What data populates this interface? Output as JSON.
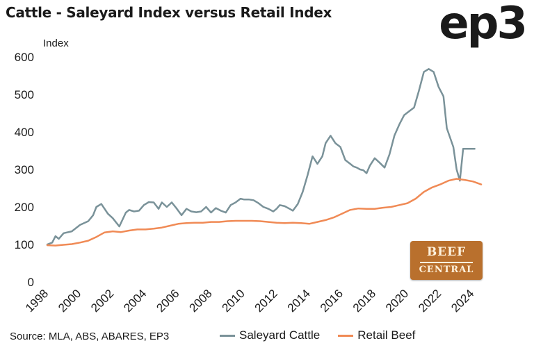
{
  "title": "Cattle - Saleyard Index versus Retail Index",
  "logo_text": "ep3",
  "source": "Source: MLA, ABS, ABARES, EP3",
  "badge": {
    "line1": "BEEF",
    "line2": "CENTRAL"
  },
  "colors": {
    "saleyard": "#7a9299",
    "retail": "#f08a55",
    "text": "#1a1a1a"
  },
  "chart_data": {
    "type": "line",
    "title": "Cattle - Saleyard Index versus Retail Index",
    "xlabel": "",
    "ylabel": "Index",
    "xlim": [
      1998,
      2024.5
    ],
    "ylim": [
      0,
      600
    ],
    "grid": false,
    "legend_position": "bottom",
    "xticks": [
      "1998",
      "2000",
      "2002",
      "2004",
      "2006",
      "2008",
      "2010",
      "2012",
      "2014",
      "2016",
      "2018",
      "2020",
      "2022",
      "2024"
    ],
    "yticks": [
      "0",
      "100",
      "200",
      "300",
      "400",
      "500",
      "600"
    ],
    "series": [
      {
        "name": "Saleyard Cattle",
        "color": "#7a9299",
        "x": [
          1998,
          1998.3,
          1998.5,
          1998.7,
          1999,
          1999.5,
          2000,
          2000.5,
          2000.8,
          2001,
          2001.3,
          2001.5,
          2001.7,
          2002,
          2002.4,
          2002.8,
          2003,
          2003.3,
          2003.6,
          2003.9,
          2004.2,
          2004.5,
          2004.8,
          2005,
          2005.3,
          2005.6,
          2005.9,
          2006.2,
          2006.5,
          2006.8,
          2007.1,
          2007.4,
          2007.7,
          2008,
          2008.3,
          2008.6,
          2008.9,
          2009.2,
          2009.5,
          2009.8,
          2010,
          2010.3,
          2010.6,
          2010.9,
          2011.2,
          2011.5,
          2011.8,
          2012,
          2012.2,
          2012.5,
          2012.8,
          2013,
          2013.3,
          2013.6,
          2013.9,
          2014.2,
          2014.5,
          2014.8,
          2015,
          2015.3,
          2015.6,
          2015.9,
          2016.2,
          2016.5,
          2016.7,
          2016.9,
          2017.1,
          2017.3,
          2017.5,
          2017.7,
          2018,
          2018.3,
          2018.6,
          2018.9,
          2019.2,
          2019.5,
          2019.8,
          2020.1,
          2020.4,
          2020.7,
          2021,
          2021.3,
          2021.6,
          2021.9,
          2022.2,
          2022.4,
          2022.6,
          2022.8,
          2023,
          2023.2,
          2023.4,
          2023.6,
          2023.9,
          2024.1
        ],
        "values": [
          100,
          105,
          122,
          115,
          130,
          135,
          152,
          162,
          178,
          200,
          208,
          195,
          182,
          170,
          148,
          185,
          192,
          188,
          190,
          205,
          213,
          212,
          195,
          212,
          200,
          212,
          196,
          178,
          195,
          188,
          186,
          188,
          200,
          185,
          197,
          190,
          185,
          205,
          212,
          222,
          220,
          220,
          218,
          210,
          200,
          195,
          188,
          195,
          205,
          202,
          195,
          190,
          208,
          240,
          285,
          335,
          315,
          335,
          370,
          390,
          370,
          360,
          325,
          315,
          308,
          305,
          300,
          298,
          290,
          310,
          330,
          318,
          305,
          340,
          390,
          420,
          445,
          455,
          465,
          510,
          560,
          568,
          560,
          520,
          495,
          410,
          385,
          360,
          300,
          270,
          355,
          355,
          355,
          355
        ],
        "note": "manually shaped"
      },
      {
        "name": "Retail Beef",
        "color": "#f08a55",
        "x": [
          1998,
          1998.5,
          1999,
          1999.5,
          2000,
          2000.5,
          2001,
          2001.5,
          2002,
          2002.5,
          2003,
          2003.5,
          2004,
          2004.5,
          2005,
          2005.5,
          2006,
          2006.5,
          2007,
          2007.5,
          2008,
          2008.5,
          2009,
          2009.5,
          2010,
          2010.5,
          2011,
          2011.5,
          2012,
          2012.5,
          2013,
          2013.5,
          2014,
          2014.5,
          2015,
          2015.5,
          2016,
          2016.5,
          2017,
          2017.5,
          2018,
          2018.5,
          2019,
          2019.5,
          2020,
          2020.5,
          2021,
          2021.5,
          2022,
          2022.5,
          2023,
          2023.5,
          2024,
          2024.5
        ],
        "values": [
          98,
          97,
          99,
          101,
          105,
          110,
          120,
          132,
          135,
          133,
          137,
          140,
          140,
          142,
          145,
          150,
          155,
          157,
          158,
          158,
          160,
          160,
          162,
          163,
          163,
          163,
          162,
          160,
          158,
          157,
          158,
          157,
          155,
          160,
          165,
          172,
          182,
          192,
          196,
          195,
          195,
          198,
          200,
          205,
          210,
          222,
          240,
          252,
          260,
          270,
          275,
          272,
          268,
          260
        ]
      }
    ]
  }
}
